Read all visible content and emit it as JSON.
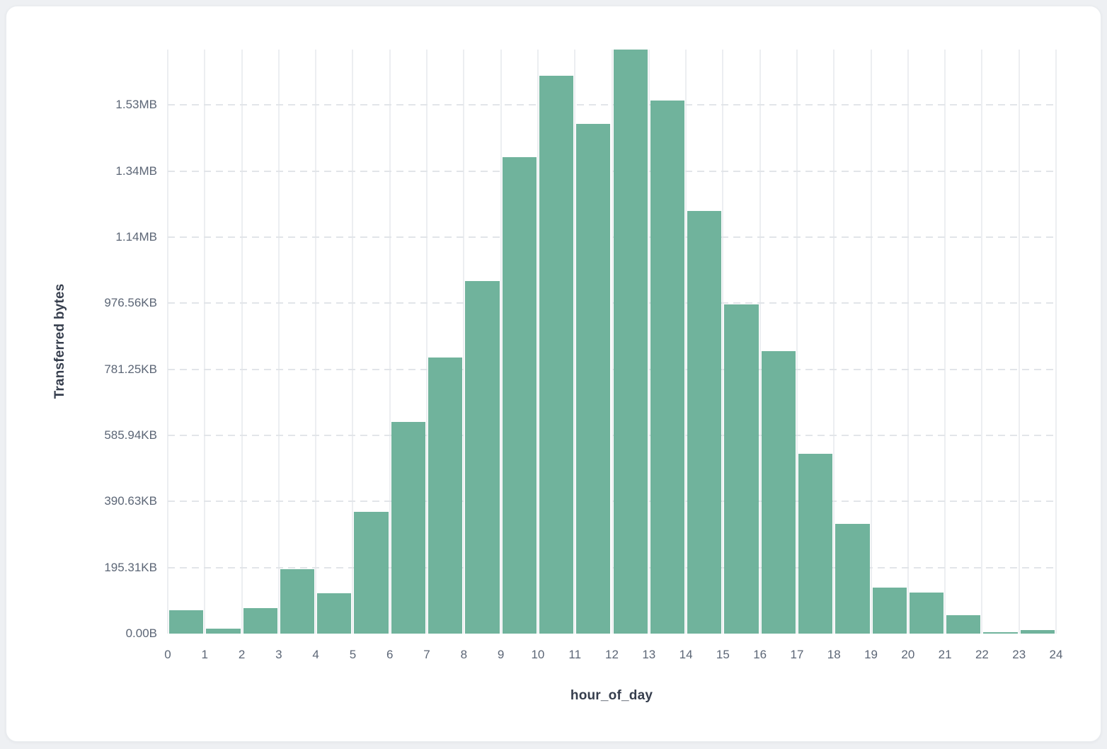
{
  "chart_data": {
    "type": "bar",
    "title": "",
    "xlabel": "hour_of_day",
    "ylabel": "Transferred bytes",
    "legend": "none",
    "grid": "vertical solid lines per hour, horizontal dashed lines per y tick",
    "bar_color": "#70b39c",
    "categories": [
      0,
      1,
      2,
      3,
      4,
      5,
      6,
      7,
      8,
      9,
      10,
      11,
      12,
      13,
      14,
      15,
      16,
      17,
      18,
      19,
      20,
      21,
      22,
      23
    ],
    "values_bytes": [
      71000,
      14500,
      76500,
      195000,
      122000,
      368000,
      640000,
      836000,
      1067000,
      1443000,
      1689000,
      1543000,
      1768000,
      1614000,
      1279000,
      996000,
      855000,
      544000,
      332000,
      139000,
      124000,
      56000,
      4500,
      11000
    ],
    "ylim_bytes": [
      0,
      1768000
    ],
    "y_ticks": [
      {
        "label": "0.00B",
        "bytes": 0
      },
      {
        "label": "195.31KB",
        "bytes": 200000
      },
      {
        "label": "390.63KB",
        "bytes": 400000
      },
      {
        "label": "585.94KB",
        "bytes": 600000
      },
      {
        "label": "781.25KB",
        "bytes": 800000
      },
      {
        "label": "976.56KB",
        "bytes": 1000000
      },
      {
        "label": "1.14MB",
        "bytes": 1200000
      },
      {
        "label": "1.34MB",
        "bytes": 1400000
      },
      {
        "label": "1.53MB",
        "bytes": 1600000
      }
    ],
    "x_tick_labels": [
      "0",
      "1",
      "2",
      "3",
      "4",
      "5",
      "6",
      "7",
      "8",
      "9",
      "10",
      "11",
      "12",
      "13",
      "14",
      "15",
      "16",
      "17",
      "18",
      "19",
      "20",
      "21",
      "22",
      "23",
      "24"
    ]
  },
  "colors": {
    "page_background": "#eef0f3",
    "card_background": "#ffffff",
    "bar": "#70b39c",
    "vertical_gridline": "#eceef1",
    "dashed_gridline": "#e2e5e9",
    "tick_label_text": "#5c6676",
    "axis_title_text": "#363e4d"
  }
}
